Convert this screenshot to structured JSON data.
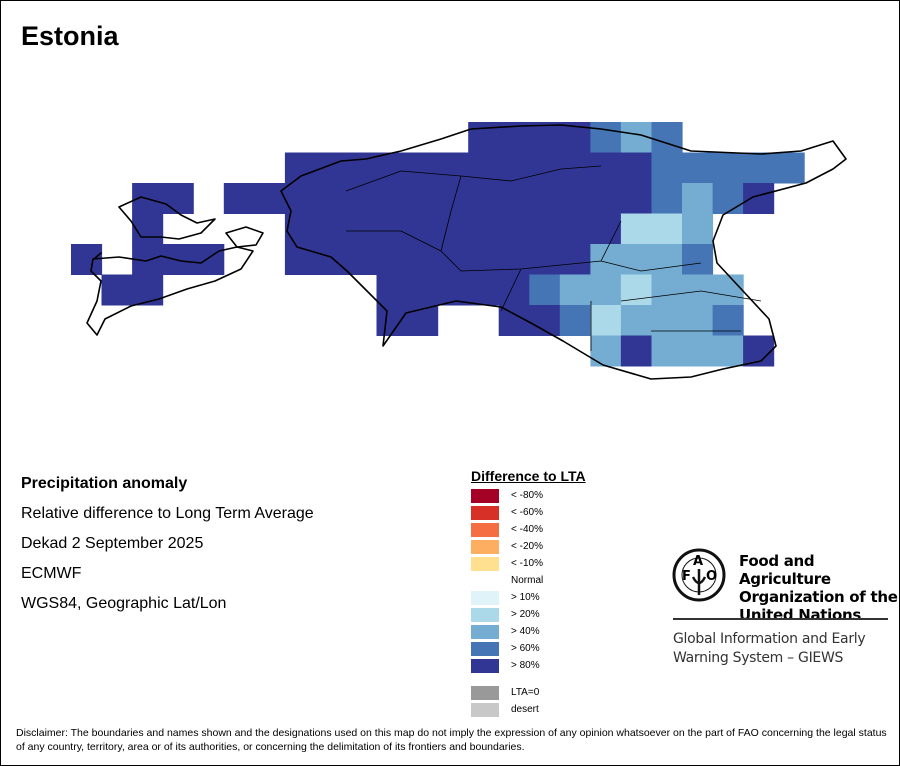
{
  "title": "Estonia",
  "info": {
    "heading": "Precipitation anomaly",
    "subtitle": "Relative difference to Long Term Average",
    "period": "Dekad 2 September 2025",
    "source": "ECMWF",
    "projection": "WGS84, Geographic Lat/Lon"
  },
  "legend": {
    "title": "Difference to LTA",
    "items": [
      {
        "label": "< -80%",
        "color": "#a50026"
      },
      {
        "label": "< -60%",
        "color": "#d73027"
      },
      {
        "label": "< -40%",
        "color": "#f46d43"
      },
      {
        "label": "< -20%",
        "color": "#fdae61"
      },
      {
        "label": "< -10%",
        "color": "#fee090"
      },
      {
        "label": "Normal",
        "color": "#ffffff"
      },
      {
        "label": "> 10%",
        "color": "#e0f3f8"
      },
      {
        "label": "> 20%",
        "color": "#abd9e9"
      },
      {
        "label": "> 40%",
        "color": "#74add1"
      },
      {
        "label": "> 60%",
        "color": "#4575b4"
      },
      {
        "label": "> 80%",
        "color": "#313695"
      },
      {
        "label": "LTA=0",
        "color": "#999999"
      },
      {
        "label": "desert",
        "color": "#c8c8c8"
      }
    ]
  },
  "grid": {
    "codes": {
      "d": "> 80%",
      "m": "> 60%",
      "l": "> 40%",
      "p": "> 20%"
    },
    "colors": {
      "d": "#313695",
      "m": "#4575b4",
      "l": "#74add1",
      "p": "#abd9e9"
    },
    "rows": [
      ".............ddddmlm....",
      ".......ddddddddddddmmmmm",
      "..dd.ddddddddddddddmlmd..",
      "..d....dddddddddddppl...",
      "d.ddd..ddddddddddlllm...",
      ".dd.......dddddmllplll..",
      "..........dd..ddmplllm.",
      ".................ldllld."
    ]
  },
  "fao": {
    "logo_text": "FAO FIAT PANIS",
    "org_lines": [
      "Food and Agriculture",
      "Organization of the",
      "United Nations"
    ],
    "giews_lines": [
      "Global Information and Early",
      "Warning System – GIEWS"
    ]
  },
  "disclaimer": "Disclaimer: The boundaries and names shown and the designations used on this map do not imply the expression of any opinion whatsoever on the part of FAO concerning the legal status of any country, territory, area or of its authorities, or concerning the delimitation of its frontiers and boundaries."
}
